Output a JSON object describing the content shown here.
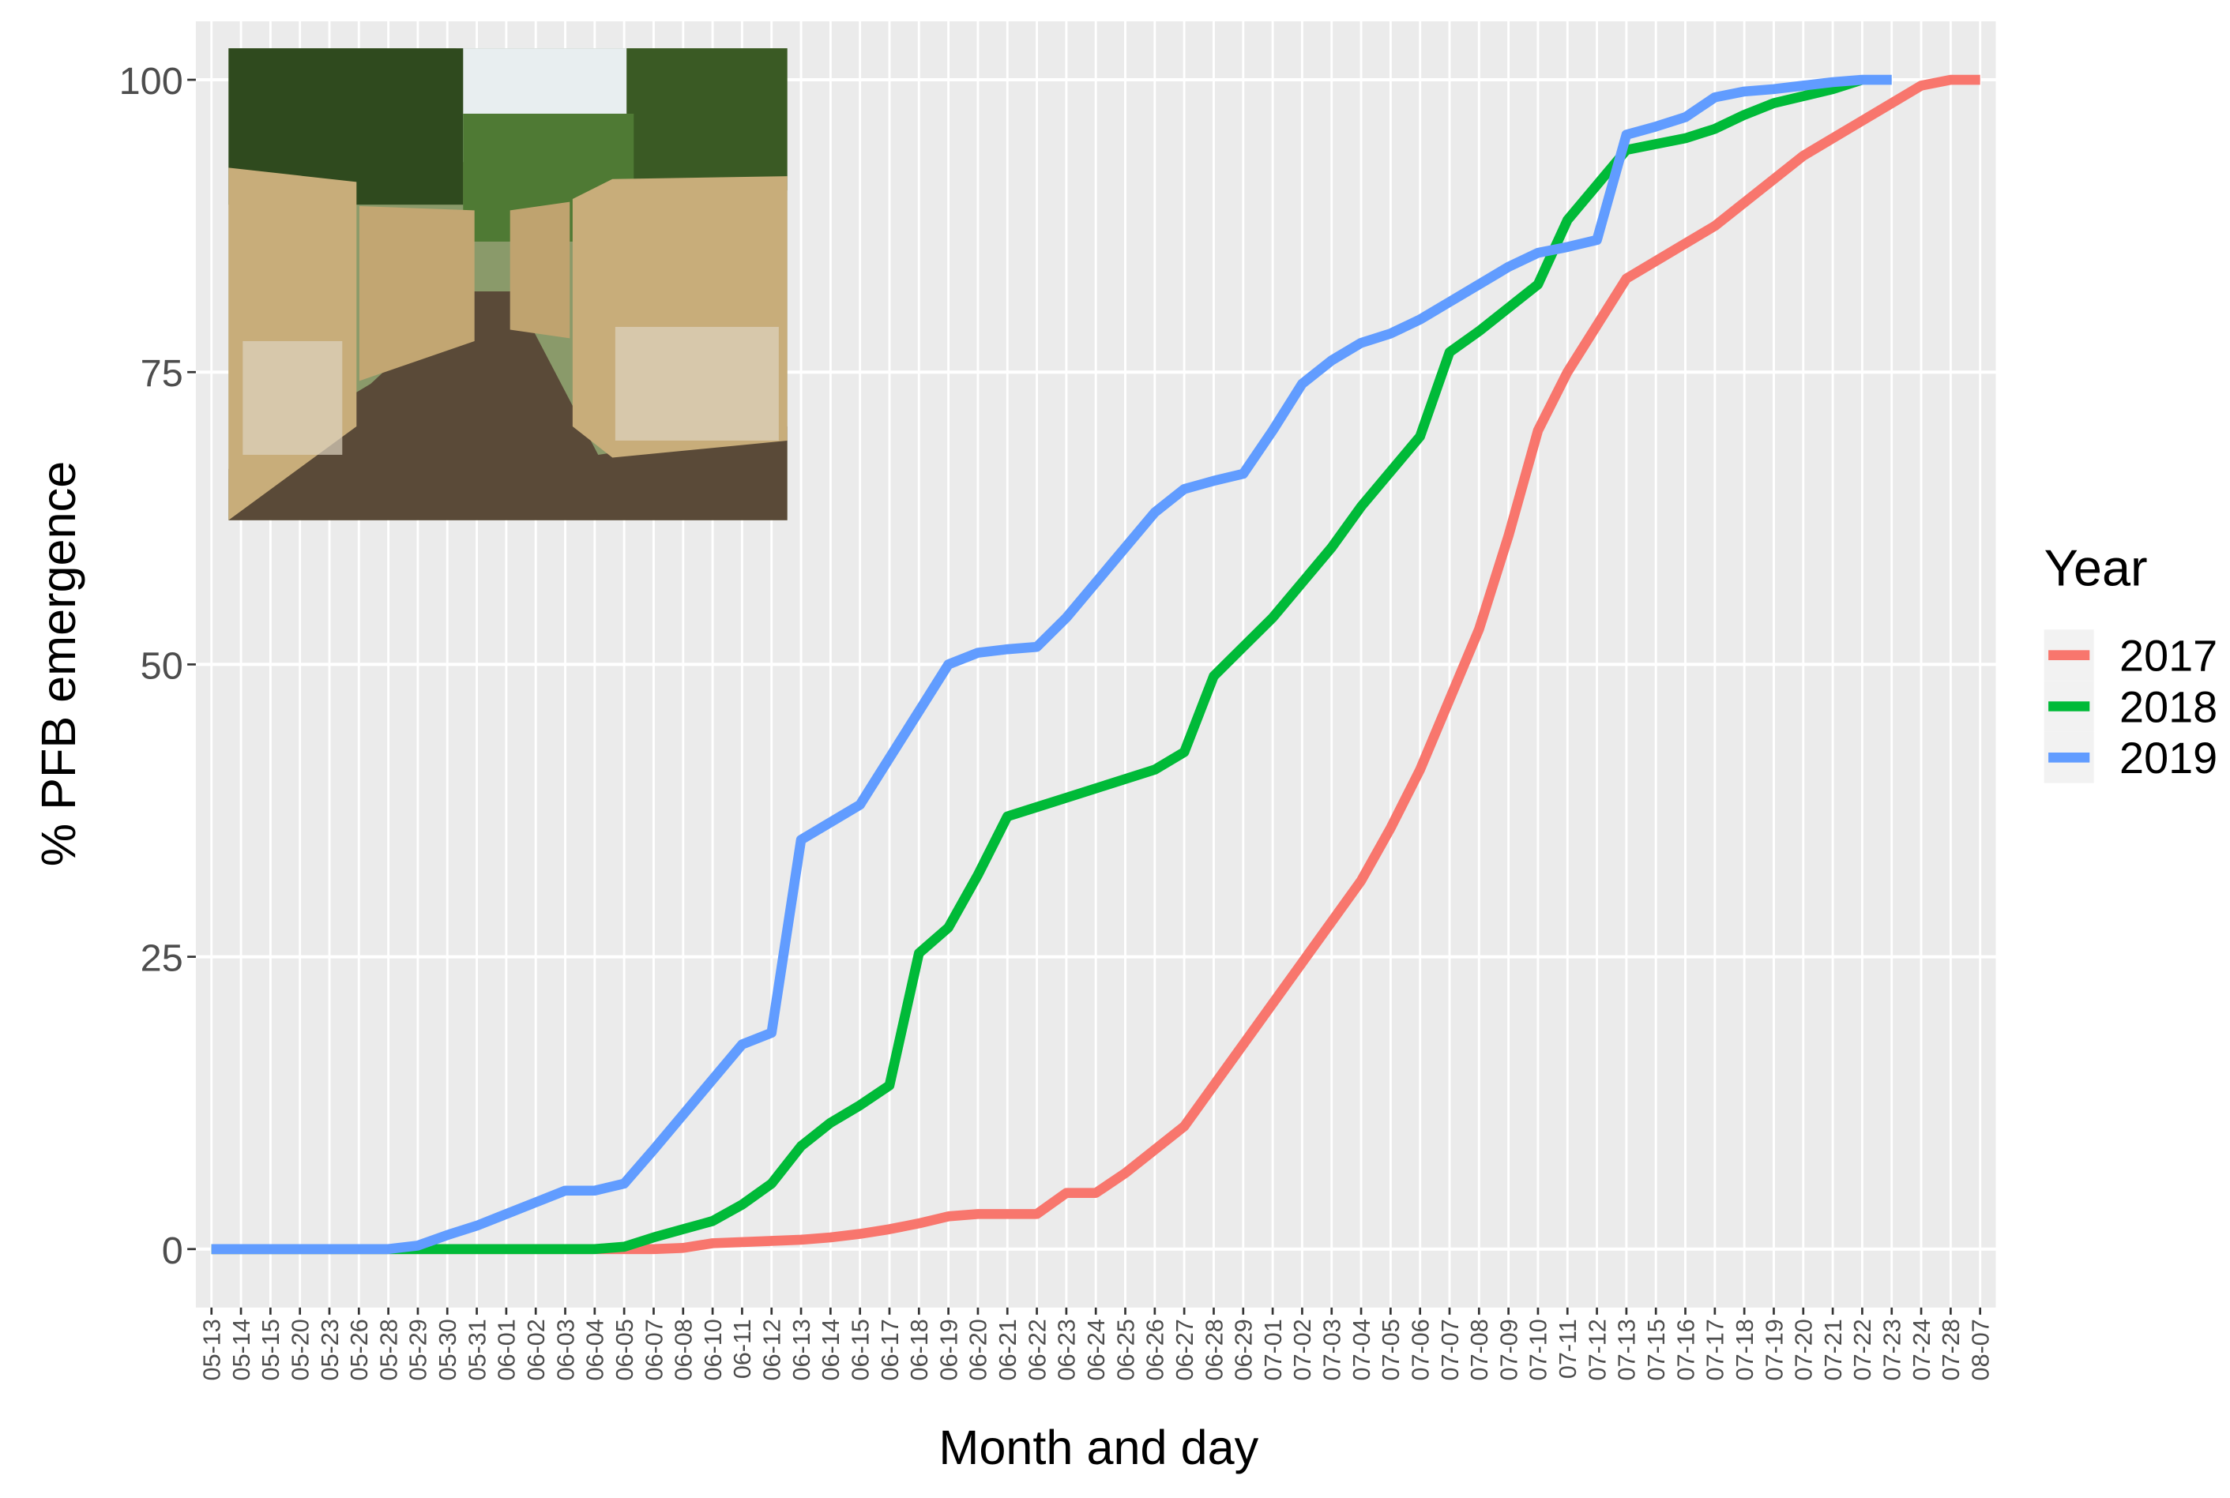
{
  "chart_data": {
    "type": "line",
    "x_label": "Month and day",
    "y_label": "% PFB emergence",
    "legend_title": "Year",
    "legend_position": "right",
    "grid": true,
    "categories": [
      "05-13",
      "05-14",
      "05-15",
      "05-20",
      "05-23",
      "05-26",
      "05-28",
      "05-29",
      "05-30",
      "05-31",
      "06-01",
      "06-02",
      "06-03",
      "06-04",
      "06-05",
      "06-07",
      "06-08",
      "06-10",
      "06-11",
      "06-12",
      "06-13",
      "06-14",
      "06-15",
      "06-17",
      "06-18",
      "06-19",
      "06-20",
      "06-21",
      "06-22",
      "06-23",
      "06-24",
      "06-25",
      "06-26",
      "06-27",
      "06-28",
      "06-29",
      "07-01",
      "07-02",
      "07-03",
      "07-04",
      "07-05",
      "07-06",
      "07-07",
      "07-08",
      "07-09",
      "07-10",
      "07-11",
      "07-12",
      "07-13",
      "07-15",
      "07-16",
      "07-17",
      "07-18",
      "07-19",
      "07-20",
      "07-21",
      "07-22",
      "07-23",
      "07-24",
      "07-28",
      "08-07"
    ],
    "ylim": [
      -5,
      105
    ],
    "yticks": [
      0,
      25,
      50,
      75,
      100
    ],
    "series": [
      {
        "name": "2017",
        "color": "#F8766D",
        "values": [
          0,
          0,
          0,
          0,
          0,
          0,
          0,
          0,
          0,
          0,
          0,
          0,
          0,
          0,
          0,
          0,
          0.1,
          0.5,
          0.6,
          0.7,
          0.8,
          1,
          1.3,
          1.7,
          2.2,
          2.8,
          3,
          3,
          3,
          4.8,
          4.8,
          6.5,
          8.5,
          10.5,
          14,
          17.5,
          21,
          24.5,
          28,
          31.5,
          36,
          41,
          47,
          53,
          61,
          70,
          75,
          79,
          83,
          84.5,
          86,
          87.5,
          89.5,
          91.5,
          93.5,
          95,
          96.5,
          98,
          99.5,
          100,
          100
        ]
      },
      {
        "name": "2018",
        "color": "#00BA38",
        "values": [
          0,
          0,
          0,
          0,
          0,
          0,
          0,
          0,
          0,
          0,
          0,
          0,
          0,
          0,
          0.2,
          1,
          1.7,
          2.4,
          3.8,
          5.6,
          8.8,
          10.8,
          12.3,
          14,
          25.3,
          27.5,
          32,
          37,
          37.8,
          38.6,
          39.4,
          40.2,
          41,
          42.5,
          49,
          51.5,
          54,
          57,
          60,
          63.5,
          66.5,
          69.5,
          76.7,
          78.5,
          80.5,
          82.5,
          88,
          91,
          94,
          94.5,
          95,
          95.8,
          97,
          98,
          98.6,
          99.2,
          100,
          null,
          null,
          null,
          null
        ]
      },
      {
        "name": "2019",
        "color": "#619CFF",
        "values": [
          0,
          0,
          0,
          0,
          0,
          0,
          0,
          0.3,
          1.2,
          2,
          3,
          4,
          5,
          5,
          5.6,
          8.5,
          11.5,
          14.5,
          17.5,
          18.5,
          35,
          36.5,
          38,
          42,
          46,
          50,
          51,
          51.3,
          51.5,
          54,
          57,
          60,
          63,
          65,
          65.7,
          66.3,
          70,
          74,
          76,
          77.5,
          78.3,
          79.5,
          81,
          82.5,
          84,
          85.2,
          85.7,
          86.3,
          95.3,
          96,
          96.8,
          98.5,
          99,
          99.2,
          99.5,
          99.8,
          100,
          100,
          null,
          null,
          null
        ]
      }
    ]
  }
}
